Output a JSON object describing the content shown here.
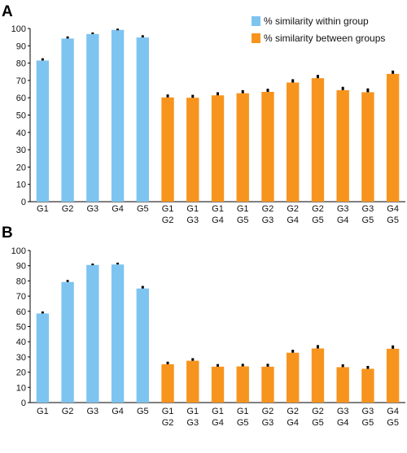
{
  "colors": {
    "within": "#7ec4f0",
    "between": "#f7941e",
    "error_bar": "#000000"
  },
  "legend": [
    {
      "key": "within",
      "label": "% similarity within group"
    },
    {
      "key": "between",
      "label": "% similarity between groups"
    }
  ],
  "chart_data": [
    {
      "panel": "A",
      "type": "bar",
      "ylim": [
        0,
        100
      ],
      "yticks": [
        0,
        10,
        20,
        30,
        40,
        50,
        60,
        70,
        80,
        90,
        100
      ],
      "categories": [
        [
          "G1"
        ],
        [
          "G2"
        ],
        [
          "G3"
        ],
        [
          "G4"
        ],
        [
          "G5"
        ],
        [
          "G1",
          "G2"
        ],
        [
          "G1",
          "G3"
        ],
        [
          "G1",
          "G4"
        ],
        [
          "G1",
          "G5"
        ],
        [
          "G2",
          "G3"
        ],
        [
          "G2",
          "G4"
        ],
        [
          "G2",
          "G5"
        ],
        [
          "G3",
          "G4"
        ],
        [
          "G3",
          "G5"
        ],
        [
          "G4",
          "G5"
        ]
      ],
      "groups": [
        "within",
        "within",
        "within",
        "within",
        "within",
        "between",
        "between",
        "between",
        "between",
        "between",
        "between",
        "between",
        "between",
        "between",
        "between"
      ],
      "values": [
        81.5,
        94.2,
        96.8,
        99.2,
        94.8,
        60.2,
        60.0,
        61.4,
        62.6,
        63.4,
        68.8,
        71.3,
        64.4,
        63.2,
        73.8
      ],
      "errors": [
        1.3,
        1.2,
        0.9,
        0.7,
        1.3,
        1.7,
        1.7,
        1.8,
        1.8,
        1.8,
        1.9,
        1.9,
        1.9,
        2.2,
        1.9
      ],
      "grid": false,
      "legend_position": "top-right"
    },
    {
      "panel": "B",
      "type": "bar",
      "ylim": [
        0,
        100
      ],
      "yticks": [
        0,
        10,
        20,
        30,
        40,
        50,
        60,
        70,
        80,
        90,
        100
      ],
      "categories": [
        [
          "G1"
        ],
        [
          "G2"
        ],
        [
          "G3"
        ],
        [
          "G4"
        ],
        [
          "G5"
        ],
        [
          "G1",
          "G2"
        ],
        [
          "G1",
          "G3"
        ],
        [
          "G1",
          "G4"
        ],
        [
          "G1",
          "G5"
        ],
        [
          "G2",
          "G3"
        ],
        [
          "G2",
          "G4"
        ],
        [
          "G2",
          "G5"
        ],
        [
          "G3",
          "G4"
        ],
        [
          "G3",
          "G5"
        ],
        [
          "G4",
          "G5"
        ]
      ],
      "groups": [
        "within",
        "within",
        "within",
        "within",
        "within",
        "between",
        "between",
        "between",
        "between",
        "between",
        "between",
        "between",
        "between",
        "between",
        "between"
      ],
      "values": [
        58.6,
        79.3,
        90.5,
        90.8,
        75.0,
        25.2,
        27.5,
        23.6,
        23.8,
        23.6,
        32.8,
        35.6,
        23.3,
        22.2,
        35.4
      ],
      "errors": [
        1.3,
        1.3,
        0.9,
        1.2,
        1.7,
        1.7,
        1.7,
        1.7,
        1.7,
        1.9,
        1.9,
        2.2,
        1.9,
        1.9,
        2.2
      ],
      "grid": false,
      "legend_position": "none"
    }
  ]
}
